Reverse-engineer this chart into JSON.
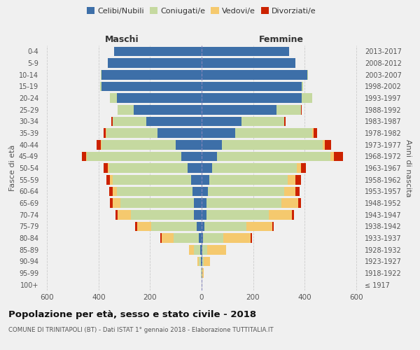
{
  "age_groups": [
    "100+",
    "95-99",
    "90-94",
    "85-89",
    "80-84",
    "75-79",
    "70-74",
    "65-69",
    "60-64",
    "55-59",
    "50-54",
    "45-49",
    "40-44",
    "35-39",
    "30-34",
    "25-29",
    "20-24",
    "15-19",
    "10-14",
    "5-9",
    "0-4"
  ],
  "birth_years": [
    "≤ 1917",
    "1918-1922",
    "1923-1927",
    "1928-1932",
    "1933-1937",
    "1938-1942",
    "1943-1947",
    "1948-1952",
    "1953-1957",
    "1958-1962",
    "1963-1967",
    "1968-1972",
    "1973-1977",
    "1978-1982",
    "1983-1987",
    "1988-1992",
    "1993-1997",
    "1998-2002",
    "2003-2007",
    "2008-2012",
    "2013-2017"
  ],
  "colors": {
    "celibe": "#3d6fa8",
    "coniugato": "#c5d9a0",
    "vedovo": "#f5c96e",
    "divorziato": "#cc2200"
  },
  "maschi": {
    "celibe": [
      0,
      0,
      2,
      5,
      10,
      20,
      30,
      30,
      35,
      40,
      55,
      80,
      100,
      170,
      215,
      265,
      330,
      390,
      390,
      365,
      340
    ],
    "coniugato": [
      0,
      2,
      8,
      25,
      100,
      175,
      245,
      285,
      295,
      305,
      305,
      365,
      290,
      200,
      130,
      60,
      25,
      5,
      2,
      0,
      0
    ],
    "vedovo": [
      0,
      2,
      5,
      20,
      45,
      55,
      50,
      30,
      15,
      10,
      5,
      5,
      2,
      2,
      0,
      0,
      0,
      0,
      0,
      0,
      0
    ],
    "divorziato": [
      0,
      0,
      0,
      0,
      5,
      8,
      10,
      12,
      15,
      15,
      15,
      15,
      15,
      8,
      5,
      0,
      0,
      0,
      0,
      0,
      0
    ]
  },
  "femmine": {
    "nubile": [
      0,
      0,
      2,
      3,
      5,
      10,
      20,
      20,
      25,
      30,
      40,
      60,
      80,
      130,
      155,
      290,
      390,
      390,
      410,
      365,
      340
    ],
    "coniugata": [
      0,
      2,
      5,
      18,
      80,
      165,
      240,
      290,
      295,
      305,
      330,
      440,
      390,
      300,
      165,
      95,
      40,
      5,
      2,
      0,
      0
    ],
    "vedova": [
      0,
      5,
      25,
      75,
      105,
      100,
      90,
      65,
      45,
      30,
      15,
      15,
      8,
      5,
      2,
      2,
      0,
      0,
      0,
      0,
      0
    ],
    "divorziata": [
      0,
      0,
      0,
      0,
      5,
      5,
      8,
      10,
      15,
      20,
      20,
      35,
      25,
      15,
      5,
      2,
      0,
      0,
      0,
      0,
      0
    ]
  },
  "xlim": 620,
  "title": "Popolazione per età, sesso e stato civile - 2018",
  "subtitle": "COMUNE DI TRINITAPOLI (BT) - Dati ISTAT 1° gennaio 2018 - Elaborazione TUTTITALIA.IT",
  "ylabel_left": "Fasce di età",
  "ylabel_right": "Anni di nascita",
  "xlabel_maschi": "Maschi",
  "xlabel_femmine": "Femmine",
  "legend_labels": [
    "Celibi/Nubili",
    "Coniugati/e",
    "Vedovi/e",
    "Divorziati/e"
  ],
  "bg_color": "#f0f0f0"
}
